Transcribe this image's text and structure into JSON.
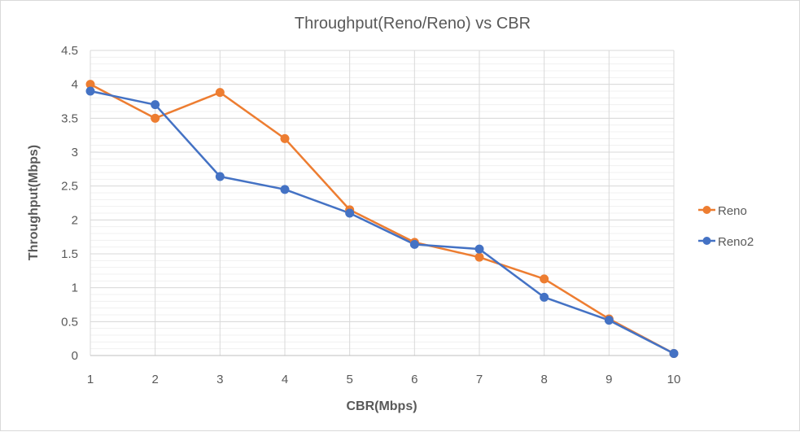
{
  "chart_data": {
    "type": "line",
    "title": "Throughput(Reno/Reno) vs CBR",
    "xlabel": "CBR(Mbps)",
    "ylabel": "Throughput(Mbps)",
    "x": [
      1,
      2,
      3,
      4,
      5,
      6,
      7,
      8,
      9,
      10
    ],
    "x_tick_labels": [
      "1",
      "2",
      "3",
      "4",
      "5",
      "6",
      "7",
      "8",
      "9",
      "10"
    ],
    "y_tick_labels": [
      "0",
      "0.5",
      "1",
      "1.5",
      "2",
      "2.5",
      "3",
      "3.5",
      "4",
      "4.5"
    ],
    "ylim": [
      0,
      4.5
    ],
    "major_grid": true,
    "minor_grid": true,
    "legend_position": "right",
    "series": [
      {
        "name": "Reno",
        "color": "#ed7d31",
        "values": [
          4.0,
          3.5,
          3.88,
          3.2,
          2.15,
          1.67,
          1.45,
          1.13,
          0.54,
          0.03
        ]
      },
      {
        "name": "Reno2",
        "color": "#4472c4",
        "values": [
          3.9,
          3.7,
          2.64,
          2.45,
          2.1,
          1.64,
          1.57,
          0.86,
          0.52,
          0.03
        ]
      }
    ]
  }
}
